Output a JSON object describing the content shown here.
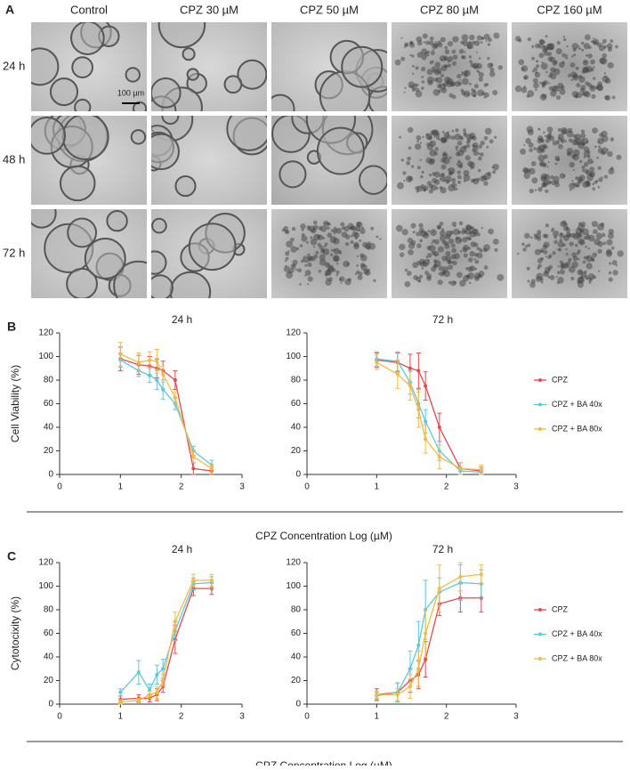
{
  "figure_a": {
    "label": "A",
    "columns": [
      "Control",
      "CPZ 30 µM",
      "CPZ 50 µM",
      "CPZ 80 µM",
      "CPZ 160 µM"
    ],
    "rows": [
      "24 h",
      "48 h",
      "72 h"
    ],
    "scale_bar": "100 µm"
  },
  "chart_data": [
    {
      "type": "line",
      "panel": "B",
      "title": "24 h",
      "ylabel": "Cell Viability (%)",
      "xlabel": "CPZ Concentration Log (µM)",
      "x": [
        1,
        1.3,
        1.48,
        1.6,
        1.7,
        1.9,
        2.2,
        2.5
      ],
      "xlim": [
        0,
        3
      ],
      "xticks": [
        0,
        1,
        2,
        3
      ],
      "ylim": [
        0,
        120
      ],
      "yticks": [
        0,
        20,
        40,
        60,
        80,
        100,
        120
      ],
      "series": [
        {
          "color": "#e8474c",
          "values": [
            98,
            93,
            92,
            90,
            88,
            80,
            5,
            3
          ],
          "errors": [
            10,
            8,
            8,
            8,
            8,
            8,
            5,
            3
          ]
        },
        {
          "color": "#5cc8df",
          "values": [
            97,
            88,
            84,
            80,
            72,
            60,
            20,
            8
          ],
          "errors": [
            6,
            5,
            6,
            8,
            8,
            5,
            4,
            4
          ]
        },
        {
          "color": "#f6b940",
          "values": [
            102,
            95,
            97,
            96,
            85,
            65,
            15,
            5
          ],
          "errors": [
            10,
            8,
            7,
            10,
            7,
            5,
            5,
            3
          ]
        }
      ]
    },
    {
      "type": "line",
      "title": "72 h",
      "legend": "right",
      "x": [
        1,
        1.3,
        1.48,
        1.6,
        1.7,
        1.9,
        2.2,
        2.5
      ],
      "xlim": [
        0,
        3
      ],
      "xticks": [
        0,
        1,
        2,
        3
      ],
      "ylim": [
        0,
        120
      ],
      "yticks": [
        0,
        20,
        40,
        60,
        80,
        100,
        120
      ],
      "series": [
        {
          "name": "CPZ",
          "color": "#e8474c",
          "values": [
            97,
            95,
            90,
            88,
            75,
            40,
            5,
            3
          ],
          "errors": [
            6,
            8,
            12,
            15,
            12,
            12,
            5,
            3
          ]
        },
        {
          "name": "CPZ + BA 40x",
          "color": "#5cc8df",
          "values": [
            98,
            96,
            78,
            60,
            45,
            20,
            3,
            2
          ],
          "errors": [
            6,
            8,
            10,
            12,
            10,
            8,
            3,
            2
          ]
        },
        {
          "name": "CPZ + BA 80x",
          "color": "#f6b940",
          "values": [
            95,
            85,
            75,
            55,
            30,
            15,
            5,
            4
          ],
          "errors": [
            6,
            12,
            12,
            15,
            12,
            10,
            5,
            4
          ]
        }
      ]
    },
    {
      "type": "line",
      "panel": "C",
      "title": "24 h",
      "ylabel": "Cytotocixity (%)",
      "xlabel": "CPZ Concentration Log (µM)",
      "x": [
        1,
        1.3,
        1.48,
        1.6,
        1.7,
        1.9,
        2.2,
        2.5
      ],
      "xlim": [
        0,
        3
      ],
      "xticks": [
        0,
        1,
        2,
        3
      ],
      "ylim": [
        0,
        120
      ],
      "yticks": [
        0,
        20,
        40,
        60,
        80,
        100,
        120
      ],
      "series": [
        {
          "color": "#e8474c",
          "values": [
            4,
            5,
            5,
            8,
            15,
            55,
            98,
            98
          ],
          "errors": [
            3,
            3,
            3,
            5,
            5,
            12,
            6,
            5
          ]
        },
        {
          "color": "#5cc8df",
          "values": [
            10,
            27,
            12,
            25,
            30,
            62,
            102,
            103
          ],
          "errors": [
            3,
            10,
            5,
            8,
            8,
            8,
            5,
            5
          ]
        },
        {
          "color": "#f6b940",
          "values": [
            2,
            3,
            8,
            10,
            20,
            70,
            105,
            105
          ],
          "errors": [
            2,
            2,
            3,
            5,
            5,
            8,
            5,
            5
          ]
        }
      ]
    },
    {
      "type": "line",
      "title": "72 h",
      "legend": "right",
      "x": [
        1,
        1.3,
        1.48,
        1.6,
        1.7,
        1.9,
        2.2,
        2.5
      ],
      "xlim": [
        0,
        3
      ],
      "xticks": [
        0,
        1,
        2,
        3
      ],
      "ylim": [
        0,
        120
      ],
      "yticks": [
        0,
        20,
        40,
        60,
        80,
        100,
        120
      ],
      "series": [
        {
          "name": "CPZ",
          "color": "#e8474c",
          "values": [
            8,
            10,
            20,
            25,
            38,
            85,
            90,
            90
          ],
          "errors": [
            5,
            8,
            10,
            12,
            15,
            10,
            12,
            12
          ]
        },
        {
          "name": "CPZ + BA 40x",
          "color": "#5cc8df",
          "values": [
            7,
            10,
            30,
            50,
            80,
            95,
            103,
            102
          ],
          "errors": [
            3,
            8,
            15,
            20,
            25,
            12,
            15,
            12
          ]
        },
        {
          "name": "CPZ + BA 80x",
          "color": "#f6b940",
          "values": [
            8,
            8,
            15,
            30,
            60,
            98,
            108,
            110
          ],
          "errors": [
            3,
            5,
            10,
            15,
            20,
            20,
            12,
            8
          ]
        }
      ]
    }
  ]
}
